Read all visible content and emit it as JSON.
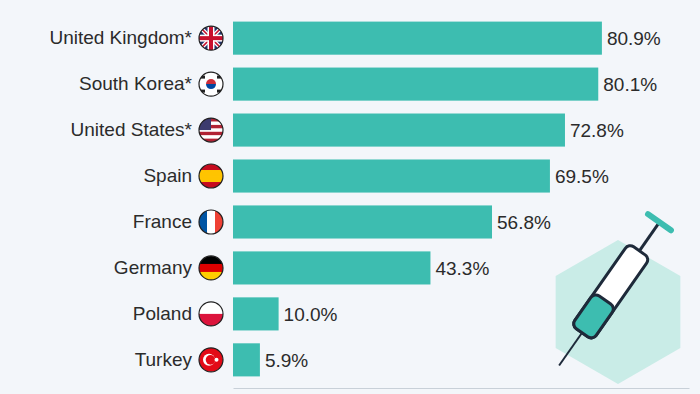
{
  "chart_data": {
    "type": "bar",
    "orientation": "horizontal",
    "categories": [
      "United Kingdom*",
      "South Korea*",
      "United States*",
      "Spain",
      "France",
      "Germany",
      "Poland",
      "Turkey"
    ],
    "values": [
      80.9,
      80.1,
      72.8,
      69.5,
      56.8,
      43.3,
      10.0,
      5.9
    ],
    "value_labels": [
      "80.9%",
      "80.1%",
      "72.8%",
      "69.5%",
      "56.8%",
      "43.3%",
      "10.0%",
      "5.9%"
    ],
    "color": "#3dbdb0",
    "xlim": [
      0,
      100
    ],
    "data_labels": true,
    "tick_labels": "y",
    "grid": false
  }
}
